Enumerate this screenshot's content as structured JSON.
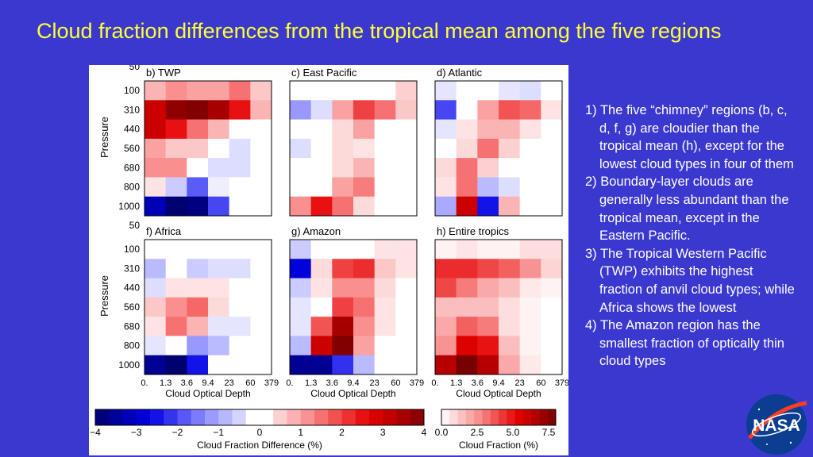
{
  "slide": {
    "title": "Cloud fraction differences from the tropical mean among the five regions",
    "bullets": [
      "1) The five “chimney” regions (b, c, d, f, g) are cloudier than the tropical mean (h), except for the lowest cloud types in four of them",
      "2)  Boundary-layer clouds are generally less abundant than the tropical mean, except in the Eastern Pacific.",
      "3) The Tropical Western Pacific (TWP) exhibits the highest fraction of anvil cloud types; while Africa shows the lowest",
      "4) The Amazon region has the smallest fraction of optically thin cloud types"
    ],
    "logo_text": "NASA"
  },
  "chart_data": {
    "type": "heatmap",
    "xlabel": "Cloud Optical Depth",
    "ylabel": "Pressure",
    "x_ticks": [
      "0.",
      "1.3",
      "3.6",
      "9.4",
      "23",
      "60",
      "379"
    ],
    "y_ticks": [
      "50",
      "100",
      "310",
      "440",
      "560",
      "680",
      "800",
      "1000"
    ],
    "panels": [
      {
        "label": "b) TWP",
        "values": [
          [
            0.8,
            1.2,
            1.0,
            1.0,
            1.5,
            0.6
          ],
          [
            3.0,
            3.8,
            4.0,
            3.5,
            2.5,
            0.8
          ],
          [
            3.0,
            2.5,
            1.5,
            0.8,
            0.0,
            0.0
          ],
          [
            1.0,
            0.6,
            0.6,
            0.0,
            -0.4,
            0.0
          ],
          [
            1.2,
            1.2,
            0.0,
            -0.4,
            -0.4,
            0.0
          ],
          [
            0.3,
            -0.6,
            -1.8,
            -0.2,
            0.0,
            0.0
          ],
          [
            -3.2,
            -4.0,
            -3.8,
            -2.0,
            0.0,
            0.0
          ]
        ]
      },
      {
        "label": "c) East Pacific",
        "values": [
          [
            0.0,
            0.0,
            0.0,
            0.0,
            0.0,
            0.5
          ],
          [
            -1.2,
            -0.4,
            1.0,
            2.0,
            1.5,
            0.6
          ],
          [
            0.0,
            0.0,
            0.4,
            1.0,
            0.0,
            0.0
          ],
          [
            -0.4,
            0.0,
            0.4,
            0.3,
            0.0,
            0.0
          ],
          [
            0.0,
            0.0,
            0.4,
            0.8,
            0.0,
            0.0
          ],
          [
            0.0,
            0.0,
            1.0,
            1.4,
            0.0,
            0.0
          ],
          [
            1.2,
            2.5,
            1.5,
            0.4,
            0.0,
            0.0
          ]
        ]
      },
      {
        "label": "d) Atlantic",
        "values": [
          [
            -0.3,
            0.0,
            0.0,
            -0.3,
            -0.4,
            0.0
          ],
          [
            -2.0,
            0.0,
            1.0,
            1.8,
            1.6,
            0.3
          ],
          [
            -0.3,
            0.3,
            0.8,
            0.8,
            0.3,
            0.0
          ],
          [
            0.0,
            0.4,
            1.5,
            0.5,
            0.0,
            0.0
          ],
          [
            0.4,
            1.5,
            0.5,
            0.0,
            0.0,
            0.0
          ],
          [
            0.3,
            1.5,
            -0.8,
            -0.4,
            0.0,
            0.0
          ],
          [
            -1.0,
            3.0,
            -2.5,
            0.8,
            0.0,
            0.0
          ]
        ]
      },
      {
        "label": "f) Africa",
        "values": [
          [
            0.0,
            0.0,
            0.0,
            0.0,
            0.0,
            0.0
          ],
          [
            -0.8,
            0.0,
            -0.6,
            -0.4,
            -0.4,
            0.0
          ],
          [
            -0.4,
            0.3,
            0.3,
            0.3,
            0.0,
            0.0
          ],
          [
            0.6,
            1.2,
            1.6,
            0.4,
            0.0,
            0.0
          ],
          [
            0.3,
            1.5,
            0.8,
            -0.3,
            -0.3,
            0.0
          ],
          [
            -0.3,
            0.0,
            -1.2,
            -0.8,
            0.0,
            0.0
          ],
          [
            -3.6,
            -4.0,
            -2.5,
            0.0,
            0.0,
            0.0
          ]
        ]
      },
      {
        "label": "g) Amazon",
        "values": [
          [
            -0.6,
            0.0,
            0.0,
            0.0,
            0.3,
            0.3
          ],
          [
            -2.8,
            0.4,
            2.0,
            2.2,
            0.6,
            0.3
          ],
          [
            -0.6,
            0.3,
            1.2,
            1.2,
            0.4,
            0.0
          ],
          [
            -0.3,
            0.0,
            2.0,
            1.5,
            0.3,
            0.0
          ],
          [
            -0.3,
            1.8,
            3.5,
            1.2,
            0.3,
            0.0
          ],
          [
            -0.8,
            3.0,
            4.0,
            1.0,
            0.0,
            0.0
          ],
          [
            -3.6,
            -3.6,
            -2.2,
            -0.8,
            0.0,
            0.0
          ]
        ]
      },
      {
        "label": "h) Entire tropics",
        "values": [
          [
            0.3,
            0.6,
            0.3,
            0.3,
            0.8,
            0.8
          ],
          [
            4.5,
            4.5,
            4.0,
            3.5,
            2.5,
            1.0
          ],
          [
            4.0,
            3.0,
            2.0,
            1.5,
            0.5,
            0.3
          ],
          [
            1.5,
            1.5,
            1.5,
            0.8,
            0.3,
            0.0
          ],
          [
            2.0,
            3.5,
            3.0,
            0.8,
            0.3,
            0.0
          ],
          [
            2.5,
            5.5,
            5.0,
            1.5,
            0.3,
            0.0
          ],
          [
            6.5,
            8.0,
            6.5,
            2.0,
            0.5,
            0.0
          ]
        ]
      }
    ],
    "colorbars": [
      {
        "label": "Cloud Fraction Difference (%)",
        "range": [
          -4,
          4
        ],
        "ticks": [
          "−4",
          "−3",
          "−2",
          "−1",
          "0",
          "1",
          "2",
          "3",
          "4"
        ],
        "colormap": "blue-white-red"
      },
      {
        "label": "Cloud Fraction (%)",
        "range": [
          0,
          8
        ],
        "ticks": [
          "0.0",
          "2.5",
          "5.0",
          "7.5"
        ],
        "colormap": "white-red"
      }
    ]
  },
  "colors": {
    "background": "#3b38d0",
    "title": "#ffff33",
    "text": "#ffffff"
  }
}
